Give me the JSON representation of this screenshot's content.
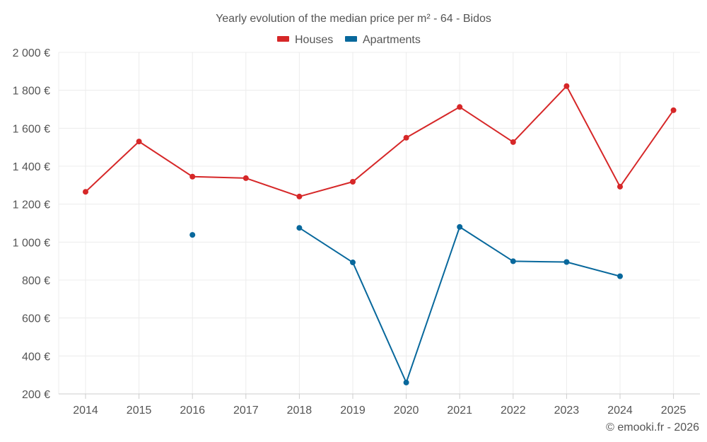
{
  "chart_data": {
    "type": "line",
    "title": "Yearly evolution of the median price per m² - 64 - Bidos",
    "categories": [
      "2014",
      "2015",
      "2016",
      "2017",
      "2018",
      "2019",
      "2020",
      "2021",
      "2022",
      "2023",
      "2024",
      "2025"
    ],
    "series": [
      {
        "name": "Houses",
        "color": "#d62728",
        "values": [
          1265,
          1530,
          1345,
          1337,
          1240,
          1318,
          1550,
          1712,
          1527,
          1822,
          1292,
          1695
        ]
      },
      {
        "name": "Apartments",
        "color": "#08689c",
        "values": [
          null,
          null,
          1038,
          null,
          1075,
          893,
          260,
          1080,
          899,
          895,
          820,
          null
        ]
      }
    ],
    "ylim": [
      200,
      2000
    ],
    "yticks": [
      200,
      400,
      600,
      800,
      1000,
      1200,
      1400,
      1600,
      1800,
      2000
    ],
    "ytick_labels": [
      "200 €",
      "400 €",
      "600 €",
      "800 €",
      "1 000 €",
      "1 200 €",
      "1 400 €",
      "1 600 €",
      "1 800 €",
      "2 000 €"
    ],
    "xlabel": "",
    "ylabel": "",
    "grid": true,
    "legend": "top-center"
  },
  "credit": "© emooki.fr - 2026"
}
